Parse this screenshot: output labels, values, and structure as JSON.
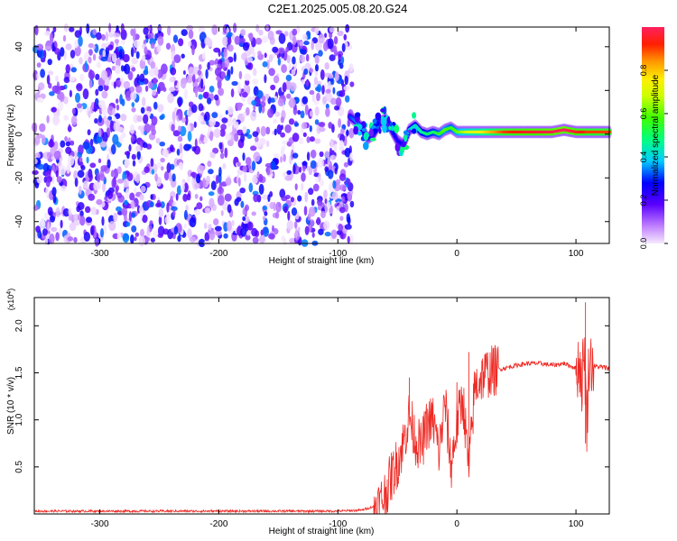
{
  "title": "C2E1.2025.005.08.20.G24",
  "colorbar": {
    "label": "Normalized spectral amplitude",
    "ticks": [
      "0.0",
      "0.2",
      "0.4",
      "0.6",
      "0.8"
    ],
    "range": [
      0,
      1
    ]
  },
  "chart_data": [
    {
      "type": "heatmap",
      "xlabel": "Height of straight line (km)",
      "ylabel": "Frequency (Hz)",
      "xlim": [
        -355,
        128
      ],
      "ylim": [
        -50,
        49
      ],
      "x_ticks": [
        "-300",
        "-200",
        "-100",
        "0",
        "100"
      ],
      "y_ticks": [
        "-40",
        "-20",
        "0",
        "20",
        "40"
      ],
      "noise_region_x": [
        -355,
        -88
      ],
      "noise_max_amplitude": 0.35,
      "signal_region_x": [
        -90,
        128
      ],
      "signal_track": {
        "x": [
          -90,
          -85,
          -80,
          -75,
          -70,
          -65,
          -60,
          -55,
          -50,
          -45,
          -40,
          -35,
          -30,
          -25,
          -20,
          -15,
          -10,
          -5,
          0,
          10,
          20,
          40,
          60,
          80,
          90,
          100,
          110,
          128
        ],
        "freq_hz": [
          8,
          6,
          3,
          -2,
          0,
          5,
          7,
          2,
          -3,
          -5,
          2,
          4,
          1,
          0,
          1,
          0,
          2,
          3,
          1,
          1,
          1,
          1,
          1,
          1,
          2,
          1,
          1,
          1
        ],
        "amplitude": [
          0.3,
          0.35,
          0.3,
          0.25,
          0.3,
          0.35,
          0.4,
          0.3,
          0.25,
          0.3,
          0.4,
          0.45,
          0.45,
          0.5,
          0.5,
          0.55,
          0.6,
          0.55,
          0.6,
          0.7,
          0.75,
          0.9,
          0.95,
          0.98,
          1.0,
          0.95,
          0.9,
          0.9
        ]
      }
    },
    {
      "type": "line",
      "xlabel": "Height of straight line (km)",
      "ylabel": "SNR (10 * v/v)",
      "y_multiplier": "(x10",
      "y_multiplier_exp": "4",
      "y_multiplier_close": ")",
      "xlim": [
        -355,
        128
      ],
      "ylim": [
        0,
        2.3
      ],
      "x_ticks": [
        "-300",
        "-200",
        "-100",
        "0",
        "100"
      ],
      "y_ticks": [
        "0.5",
        "1.0",
        "1.5",
        "2.0"
      ],
      "color": "#ee2a24",
      "series": [
        {
          "x": [
            -355,
            -100,
            -80,
            -65,
            -60,
            -55,
            -50,
            -45,
            -40,
            -35,
            -30,
            -25,
            -20,
            -15,
            -10,
            -5,
            0,
            5,
            10,
            15,
            20,
            25,
            30,
            40,
            50,
            60,
            70,
            80,
            90,
            100,
            103,
            105,
            107,
            109,
            111,
            115,
            128
          ],
          "y": [
            0.03,
            0.03,
            0.04,
            0.1,
            0.22,
            0.4,
            0.55,
            0.75,
            1.05,
            0.8,
            0.7,
            0.95,
            1.0,
            0.65,
            1.2,
            0.5,
            0.95,
            1.25,
            0.45,
            1.35,
            1.45,
            1.5,
            1.52,
            1.55,
            1.58,
            1.6,
            1.6,
            1.58,
            1.6,
            1.55,
            1.6,
            1.4,
            1.8,
            0.9,
            1.65,
            1.57,
            1.55
          ]
        }
      ],
      "spikes": [
        {
          "x": -40,
          "y": 1.45
        },
        {
          "x": 0,
          "y": 1.4
        },
        {
          "x": 10,
          "y": 1.72
        },
        {
          "x": 108,
          "y": 2.25
        },
        {
          "x": 108,
          "y": 0.75
        }
      ]
    }
  ]
}
